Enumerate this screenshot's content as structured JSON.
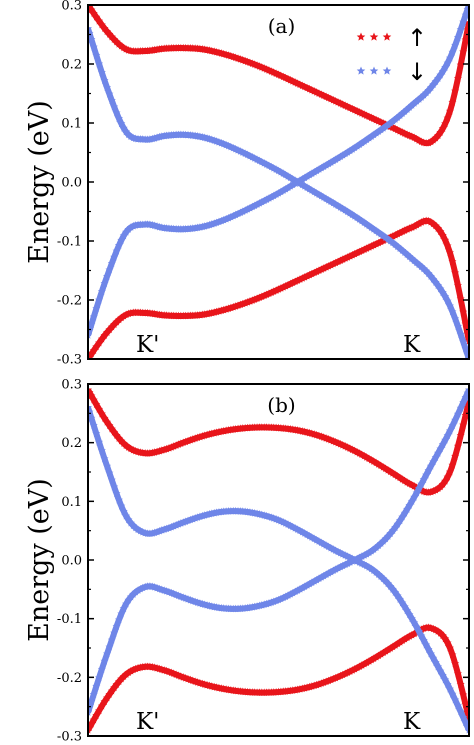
{
  "colors": {
    "spin_up": "#e8151b",
    "spin_down": "#6f86e8",
    "axes": "#000000"
  },
  "legend": {
    "position": "top-right",
    "entries": [
      {
        "series": "spin_up",
        "marker": "star",
        "label": "↑"
      },
      {
        "series": "spin_down",
        "marker": "star",
        "label": "↓"
      }
    ]
  },
  "chart_data": [
    {
      "type": "line",
      "panel_label": "(a)",
      "ylabel": "Energy (eV)",
      "ylim": [
        -0.3,
        0.3
      ],
      "yticks": [
        "0.3",
        "0.2",
        "0.1",
        "0.0",
        "-0.1",
        "-0.2",
        "-0.3"
      ],
      "point_labels": [
        "K'",
        "K"
      ],
      "grid": false,
      "x": [
        0,
        5,
        10,
        15,
        20,
        25,
        30,
        35,
        40,
        45,
        50,
        55,
        60,
        65,
        70,
        75,
        80,
        85,
        90,
        95,
        100
      ],
      "series": [
        {
          "key": "spin_up",
          "marker": "star",
          "values": [
            0.3,
            0.255,
            0.225,
            0.222,
            0.226,
            0.227,
            0.225,
            0.218,
            0.208,
            0.196,
            0.182,
            0.167,
            0.152,
            0.137,
            0.122,
            0.107,
            0.092,
            0.077,
            0.068,
            0.12,
            0.27
          ]
        },
        {
          "key": "spin_up",
          "marker": "star",
          "values": [
            -0.3,
            -0.255,
            -0.225,
            -0.222,
            -0.226,
            -0.227,
            -0.225,
            -0.218,
            -0.208,
            -0.196,
            -0.182,
            -0.167,
            -0.152,
            -0.137,
            -0.122,
            -0.107,
            -0.092,
            -0.077,
            -0.068,
            -0.12,
            -0.27
          ]
        },
        {
          "key": "spin_down",
          "marker": "star",
          "values": [
            0.26,
            0.16,
            0.085,
            0.072,
            0.078,
            0.08,
            0.076,
            0.066,
            0.052,
            0.036,
            0.019,
            0.0,
            -0.019,
            -0.038,
            -0.058,
            -0.08,
            -0.103,
            -0.13,
            -0.16,
            -0.21,
            -0.3
          ]
        },
        {
          "key": "spin_down",
          "marker": "star",
          "values": [
            -0.26,
            -0.16,
            -0.085,
            -0.072,
            -0.078,
            -0.08,
            -0.076,
            -0.066,
            -0.052,
            -0.036,
            -0.019,
            0.0,
            0.019,
            0.038,
            0.058,
            0.08,
            0.103,
            0.13,
            0.16,
            0.21,
            0.3
          ]
        }
      ]
    },
    {
      "type": "line",
      "panel_label": "(b)",
      "ylabel": "Energy (eV)",
      "ylim": [
        -0.3,
        0.3
      ],
      "yticks": [
        "0.3",
        "0.2",
        "0.1",
        "0.0",
        "-0.1",
        "-0.2",
        "-0.3"
      ],
      "point_labels": [
        "K'",
        "K"
      ],
      "grid": false,
      "x": [
        0,
        5,
        10,
        15,
        20,
        25,
        30,
        35,
        40,
        45,
        50,
        55,
        60,
        65,
        70,
        75,
        80,
        85,
        90,
        95,
        100
      ],
      "series": [
        {
          "key": "spin_up",
          "marker": "star",
          "values": [
            0.29,
            0.235,
            0.195,
            0.182,
            0.188,
            0.2,
            0.211,
            0.219,
            0.224,
            0.226,
            0.225,
            0.221,
            0.213,
            0.201,
            0.186,
            0.168,
            0.148,
            0.128,
            0.116,
            0.15,
            0.27
          ]
        },
        {
          "key": "spin_up",
          "marker": "star",
          "values": [
            -0.29,
            -0.235,
            -0.195,
            -0.182,
            -0.188,
            -0.2,
            -0.211,
            -0.219,
            -0.224,
            -0.226,
            -0.225,
            -0.221,
            -0.213,
            -0.201,
            -0.186,
            -0.168,
            -0.148,
            -0.128,
            -0.116,
            -0.15,
            -0.27
          ]
        },
        {
          "key": "spin_down",
          "marker": "star",
          "values": [
            0.26,
            0.16,
            0.075,
            0.046,
            0.052,
            0.064,
            0.075,
            0.082,
            0.083,
            0.078,
            0.068,
            0.052,
            0.034,
            0.016,
            0.0,
            -0.018,
            -0.05,
            -0.1,
            -0.16,
            -0.22,
            -0.29
          ]
        },
        {
          "key": "spin_down",
          "marker": "star",
          "values": [
            -0.26,
            -0.16,
            -0.075,
            -0.046,
            -0.052,
            -0.064,
            -0.075,
            -0.082,
            -0.083,
            -0.078,
            -0.068,
            -0.052,
            -0.034,
            -0.016,
            0.0,
            0.018,
            0.05,
            0.1,
            0.16,
            0.22,
            0.29
          ]
        }
      ]
    }
  ]
}
